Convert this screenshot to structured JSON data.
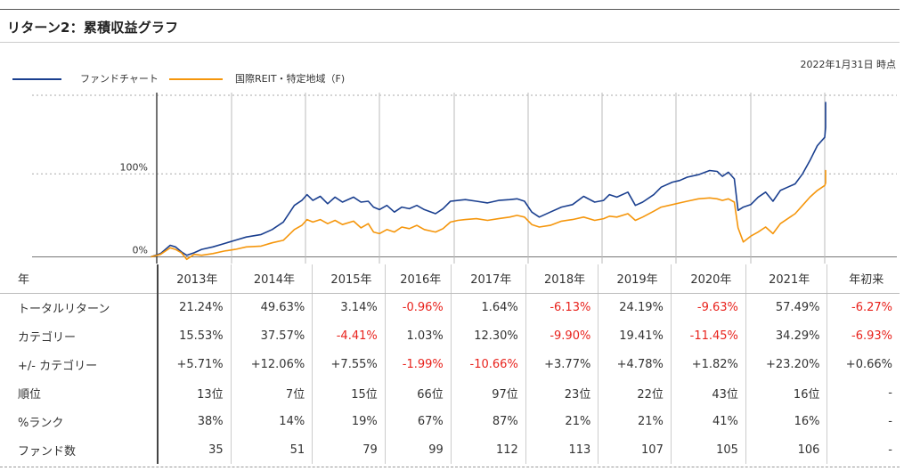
{
  "title": "リターン2：累積収益グラフ",
  "as_of": "2022年1月31日 時点",
  "legend": {
    "fund_label": "ファンドチャート",
    "category_label": "国際REIT・特定地域（F)"
  },
  "colors": {
    "fund": "#1a3f8f",
    "category": "#f5960c",
    "negative": "#e8221c"
  },
  "chart_data": {
    "type": "line",
    "x_unit": "year",
    "y_unit": "%",
    "yticks": [
      {
        "value": 0,
        "label": "0%"
      },
      {
        "value": 100,
        "label": "100%"
      }
    ],
    "ylim": [
      -8,
      200
    ],
    "xlim": [
      2012.9,
      2022.08
    ],
    "year_boundaries": [
      2013,
      2014,
      2015,
      2016,
      2017,
      2018,
      2019,
      2020,
      2021,
      2022
    ],
    "grid": "horizontal-dotted-and-vertical",
    "series": [
      {
        "key": "fund",
        "points": [
          [
            2012.92,
            0
          ],
          [
            2013.05,
            4
          ],
          [
            2013.18,
            14
          ],
          [
            2013.25,
            12
          ],
          [
            2013.33,
            6
          ],
          [
            2013.4,
            2
          ],
          [
            2013.5,
            5
          ],
          [
            2013.6,
            9
          ],
          [
            2013.75,
            12
          ],
          [
            2013.9,
            16
          ],
          [
            2014.05,
            20
          ],
          [
            2014.2,
            24
          ],
          [
            2014.4,
            27
          ],
          [
            2014.55,
            33
          ],
          [
            2014.7,
            42
          ],
          [
            2014.85,
            62
          ],
          [
            2014.95,
            68
          ],
          [
            2015.02,
            75
          ],
          [
            2015.1,
            68
          ],
          [
            2015.2,
            73
          ],
          [
            2015.3,
            64
          ],
          [
            2015.4,
            72
          ],
          [
            2015.5,
            66
          ],
          [
            2015.65,
            72
          ],
          [
            2015.75,
            66
          ],
          [
            2015.85,
            67
          ],
          [
            2015.92,
            60
          ],
          [
            2016.0,
            57
          ],
          [
            2016.1,
            62
          ],
          [
            2016.2,
            54
          ],
          [
            2016.3,
            60
          ],
          [
            2016.4,
            58
          ],
          [
            2016.5,
            62
          ],
          [
            2016.6,
            57
          ],
          [
            2016.75,
            52
          ],
          [
            2016.85,
            58
          ],
          [
            2016.95,
            67
          ],
          [
            2017.05,
            68
          ],
          [
            2017.15,
            69
          ],
          [
            2017.3,
            67
          ],
          [
            2017.45,
            65
          ],
          [
            2017.6,
            68
          ],
          [
            2017.75,
            69
          ],
          [
            2017.85,
            70
          ],
          [
            2017.95,
            67
          ],
          [
            2018.05,
            54
          ],
          [
            2018.15,
            48
          ],
          [
            2018.3,
            54
          ],
          [
            2018.45,
            60
          ],
          [
            2018.6,
            63
          ],
          [
            2018.75,
            73
          ],
          [
            2018.9,
            66
          ],
          [
            2019.02,
            68
          ],
          [
            2019.1,
            75
          ],
          [
            2019.2,
            72
          ],
          [
            2019.35,
            78
          ],
          [
            2019.45,
            62
          ],
          [
            2019.55,
            66
          ],
          [
            2019.7,
            75
          ],
          [
            2019.8,
            84
          ],
          [
            2019.95,
            90
          ],
          [
            2020.05,
            92
          ],
          [
            2020.15,
            96
          ],
          [
            2020.3,
            99
          ],
          [
            2020.45,
            104
          ],
          [
            2020.55,
            103
          ],
          [
            2020.62,
            97
          ],
          [
            2020.7,
            102
          ],
          [
            2020.78,
            94
          ],
          [
            2020.83,
            56
          ],
          [
            2020.9,
            60
          ],
          [
            2021.0,
            63
          ],
          [
            2021.1,
            72
          ],
          [
            2021.2,
            78
          ],
          [
            2021.3,
            67
          ],
          [
            2021.4,
            80
          ],
          [
            2021.5,
            84
          ],
          [
            2021.6,
            88
          ],
          [
            2021.7,
            100
          ],
          [
            2021.8,
            116
          ],
          [
            2021.9,
            134
          ],
          [
            2022.0,
            144
          ],
          [
            2022.05,
            156
          ],
          [
            2022.1,
            165
          ],
          [
            2022.15,
            174
          ],
          [
            2022.2,
            186
          ],
          [
            2022.25,
            176
          ],
          [
            2022.3,
            167
          ]
        ]
      },
      {
        "key": "category",
        "points": [
          [
            2012.92,
            0
          ],
          [
            2013.05,
            3
          ],
          [
            2013.18,
            11
          ],
          [
            2013.25,
            9
          ],
          [
            2013.33,
            5
          ],
          [
            2013.4,
            -3
          ],
          [
            2013.5,
            3
          ],
          [
            2013.6,
            2
          ],
          [
            2013.75,
            4
          ],
          [
            2013.9,
            7
          ],
          [
            2014.05,
            9
          ],
          [
            2014.2,
            12
          ],
          [
            2014.4,
            13
          ],
          [
            2014.55,
            17
          ],
          [
            2014.7,
            20
          ],
          [
            2014.85,
            33
          ],
          [
            2014.95,
            38
          ],
          [
            2015.02,
            45
          ],
          [
            2015.1,
            42
          ],
          [
            2015.2,
            45
          ],
          [
            2015.3,
            40
          ],
          [
            2015.4,
            44
          ],
          [
            2015.5,
            39
          ],
          [
            2015.65,
            43
          ],
          [
            2015.75,
            35
          ],
          [
            2015.85,
            40
          ],
          [
            2015.92,
            30
          ],
          [
            2016.0,
            28
          ],
          [
            2016.1,
            33
          ],
          [
            2016.2,
            30
          ],
          [
            2016.3,
            36
          ],
          [
            2016.4,
            34
          ],
          [
            2016.5,
            38
          ],
          [
            2016.6,
            33
          ],
          [
            2016.75,
            30
          ],
          [
            2016.85,
            34
          ],
          [
            2016.95,
            42
          ],
          [
            2017.05,
            44
          ],
          [
            2017.15,
            45
          ],
          [
            2017.3,
            46
          ],
          [
            2017.45,
            44
          ],
          [
            2017.6,
            46
          ],
          [
            2017.75,
            48
          ],
          [
            2017.85,
            50
          ],
          [
            2017.95,
            48
          ],
          [
            2018.05,
            39
          ],
          [
            2018.15,
            36
          ],
          [
            2018.3,
            38
          ],
          [
            2018.45,
            43
          ],
          [
            2018.6,
            45
          ],
          [
            2018.75,
            48
          ],
          [
            2018.9,
            44
          ],
          [
            2019.02,
            46
          ],
          [
            2019.1,
            49
          ],
          [
            2019.2,
            48
          ],
          [
            2019.35,
            52
          ],
          [
            2019.45,
            44
          ],
          [
            2019.55,
            48
          ],
          [
            2019.7,
            55
          ],
          [
            2019.8,
            60
          ],
          [
            2019.95,
            63
          ],
          [
            2020.05,
            65
          ],
          [
            2020.15,
            67
          ],
          [
            2020.3,
            70
          ],
          [
            2020.45,
            71
          ],
          [
            2020.55,
            70
          ],
          [
            2020.62,
            68
          ],
          [
            2020.7,
            70
          ],
          [
            2020.78,
            66
          ],
          [
            2020.83,
            35
          ],
          [
            2020.9,
            18
          ],
          [
            2021.0,
            25
          ],
          [
            2021.1,
            30
          ],
          [
            2021.2,
            36
          ],
          [
            2021.3,
            28
          ],
          [
            2021.4,
            40
          ],
          [
            2021.5,
            46
          ],
          [
            2021.6,
            52
          ],
          [
            2021.7,
            62
          ],
          [
            2021.8,
            72
          ],
          [
            2021.9,
            80
          ],
          [
            2022.0,
            86
          ],
          [
            2022.05,
            89
          ],
          [
            2022.1,
            92
          ],
          [
            2022.15,
            96
          ],
          [
            2022.2,
            104
          ],
          [
            2022.25,
            95
          ],
          [
            2022.3,
            90
          ]
        ]
      }
    ]
  },
  "table": {
    "header": [
      "年",
      "2013年",
      "2014年",
      "2015年",
      "2016年",
      "2017年",
      "2018年",
      "2019年",
      "2020年",
      "2021年",
      "年初来"
    ],
    "rows": [
      {
        "label": "トータルリターン",
        "cells": [
          "21.24%",
          "49.63%",
          "3.14%",
          "-0.96%",
          "1.64%",
          "-6.13%",
          "24.19%",
          "-9.63%",
          "57.49%",
          "-6.27%"
        ]
      },
      {
        "label": "カテゴリー",
        "cells": [
          "15.53%",
          "37.57%",
          "-4.41%",
          "1.03%",
          "12.30%",
          "-9.90%",
          "19.41%",
          "-11.45%",
          "34.29%",
          "-6.93%"
        ]
      },
      {
        "label": "+/- カテゴリー",
        "cells": [
          "+5.71%",
          "+12.06%",
          "+7.55%",
          "-1.99%",
          "-10.66%",
          "+3.77%",
          "+4.78%",
          "+1.82%",
          "+23.20%",
          "+0.66%"
        ]
      },
      {
        "label": "順位",
        "cells": [
          "13位",
          "7位",
          "15位",
          "66位",
          "97位",
          "23位",
          "22位",
          "43位",
          "16位",
          "-"
        ]
      },
      {
        "label": "%ランク",
        "cells": [
          "38%",
          "14%",
          "19%",
          "67%",
          "87%",
          "21%",
          "21%",
          "41%",
          "16%",
          "-"
        ]
      },
      {
        "label": "ファンド数",
        "cells": [
          "35",
          "51",
          "79",
          "99",
          "112",
          "113",
          "107",
          "105",
          "106",
          "-"
        ]
      }
    ]
  }
}
